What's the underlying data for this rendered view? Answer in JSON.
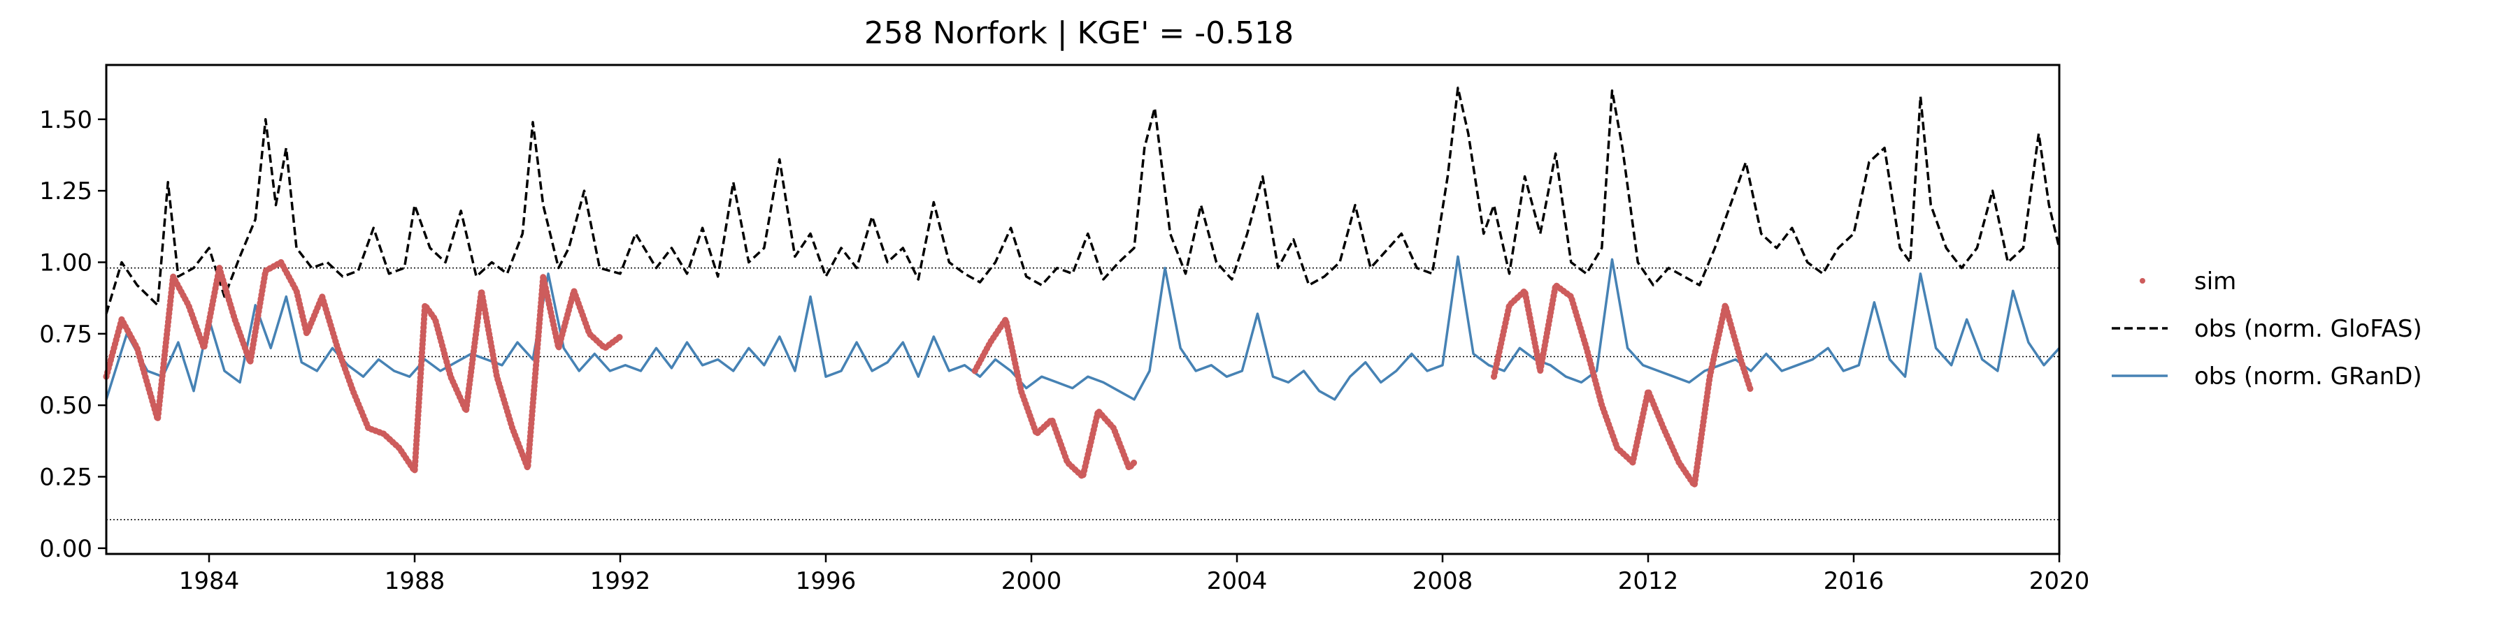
{
  "chart_data": {
    "type": "line",
    "title": "258  Norfork | KGE' = -0.518",
    "xlabel": "",
    "ylabel": "",
    "xlim": [
      1982.0,
      2020.0
    ],
    "ylim": [
      -0.02,
      1.69
    ],
    "x_ticks": [
      1984,
      1988,
      1992,
      1996,
      2000,
      2004,
      2008,
      2012,
      2016,
      2020
    ],
    "x_tick_labels": [
      "1984",
      "1988",
      "1992",
      "1996",
      "2000",
      "2004",
      "2008",
      "2012",
      "2016",
      "2020"
    ],
    "y_ticks": [
      0.0,
      0.25,
      0.5,
      0.75,
      1.0,
      1.25,
      1.5
    ],
    "y_tick_labels": [
      "0.00",
      "0.25",
      "0.50",
      "0.75",
      "1.00",
      "1.25",
      "1.50"
    ],
    "grid": false,
    "reference_lines": [
      0.98,
      0.67,
      0.1
    ],
    "legend": {
      "placement": "right-outside",
      "entries": [
        "sim",
        "obs (norm. GloFAS)",
        "obs (norm. GRanD)"
      ]
    },
    "colors": {
      "sim": "#cd5c5c",
      "glofas": "#000000",
      "grand": "#4682b4"
    },
    "series": [
      {
        "name": "obs (norm. GloFAS)",
        "style": "dashed",
        "x": [
          1982.0,
          1982.3,
          1982.6,
          1983.0,
          1983.2,
          1983.4,
          1983.7,
          1984.0,
          1984.3,
          1984.6,
          1984.9,
          1985.1,
          1985.3,
          1985.5,
          1985.7,
          1986.0,
          1986.3,
          1986.6,
          1986.9,
          1987.2,
          1987.5,
          1987.8,
          1988.0,
          1988.3,
          1988.6,
          1988.9,
          1989.2,
          1989.5,
          1989.8,
          1990.1,
          1990.3,
          1990.5,
          1990.8,
          1991.0,
          1991.3,
          1991.6,
          1992.0,
          1992.3,
          1992.7,
          1993.0,
          1993.3,
          1993.6,
          1993.9,
          1994.2,
          1994.5,
          1994.8,
          1995.1,
          1995.4,
          1995.7,
          1996.0,
          1996.3,
          1996.6,
          1996.9,
          1997.2,
          1997.5,
          1997.8,
          1998.1,
          1998.4,
          1998.7,
          1999.0,
          1999.3,
          1999.6,
          1999.9,
          2000.2,
          2000.5,
          2000.8,
          2001.1,
          2001.4,
          2001.7,
          2002.0,
          2002.2,
          2002.4,
          2002.7,
          2003.0,
          2003.3,
          2003.6,
          2003.9,
          2004.2,
          2004.5,
          2004.8,
          2005.1,
          2005.4,
          2005.7,
          2006.0,
          2006.3,
          2006.6,
          2006.9,
          2007.2,
          2007.5,
          2007.8,
          2008.1,
          2008.3,
          2008.5,
          2008.8,
          2009.0,
          2009.3,
          2009.6,
          2009.9,
          2010.2,
          2010.5,
          2010.8,
          2011.1,
          2011.3,
          2011.5,
          2011.8,
          2012.1,
          2012.4,
          2012.7,
          2013.0,
          2013.3,
          2013.6,
          2013.9,
          2014.2,
          2014.5,
          2014.8,
          2015.1,
          2015.4,
          2015.7,
          2016.0,
          2016.3,
          2016.6,
          2016.9,
          2017.1,
          2017.3,
          2017.5,
          2017.8,
          2018.1,
          2018.4,
          2018.7,
          2019.0,
          2019.3,
          2019.6,
          2019.8,
          2020.0
        ],
        "y": [
          0.82,
          1.0,
          0.92,
          0.85,
          1.28,
          0.95,
          0.98,
          1.05,
          0.88,
          1.02,
          1.15,
          1.5,
          1.2,
          1.4,
          1.05,
          0.98,
          1.0,
          0.95,
          0.97,
          1.12,
          0.96,
          0.98,
          1.2,
          1.05,
          1.0,
          1.18,
          0.95,
          1.0,
          0.96,
          1.1,
          1.49,
          1.2,
          0.98,
          1.05,
          1.25,
          0.98,
          0.96,
          1.1,
          0.98,
          1.05,
          0.96,
          1.12,
          0.95,
          1.28,
          1.0,
          1.05,
          1.36,
          1.02,
          1.1,
          0.95,
          1.05,
          0.98,
          1.16,
          1.0,
          1.05,
          0.94,
          1.21,
          1.0,
          0.96,
          0.93,
          1.0,
          1.12,
          0.95,
          0.92,
          0.98,
          0.96,
          1.1,
          0.94,
          1.0,
          1.05,
          1.4,
          1.54,
          1.1,
          0.96,
          1.2,
          1.0,
          0.94,
          1.1,
          1.3,
          0.98,
          1.08,
          0.92,
          0.95,
          1.0,
          1.2,
          0.98,
          1.04,
          1.1,
          0.98,
          0.96,
          1.3,
          1.61,
          1.45,
          1.1,
          1.2,
          0.96,
          1.3,
          1.1,
          1.38,
          1.0,
          0.96,
          1.05,
          1.6,
          1.4,
          1.0,
          0.92,
          0.98,
          0.95,
          0.92,
          1.05,
          1.2,
          1.35,
          1.1,
          1.05,
          1.12,
          1.0,
          0.96,
          1.05,
          1.1,
          1.35,
          1.4,
          1.05,
          1.0,
          1.58,
          1.2,
          1.05,
          0.98,
          1.05,
          1.25,
          1.0,
          1.05,
          1.45,
          1.2,
          1.05
        ]
      },
      {
        "name": "obs (norm. GRanD)",
        "style": "solid",
        "x": [
          1982.0,
          1982.4,
          1982.8,
          1983.1,
          1983.4,
          1983.7,
          1984.0,
          1984.3,
          1984.6,
          1984.9,
          1985.2,
          1985.5,
          1985.8,
          1986.1,
          1986.4,
          1986.7,
          1987.0,
          1987.3,
          1987.6,
          1987.9,
          1988.2,
          1988.5,
          1988.8,
          1989.1,
          1989.4,
          1989.7,
          1990.0,
          1990.3,
          1990.6,
          1990.9,
          1991.2,
          1991.5,
          1991.8,
          1992.1,
          1992.4,
          1992.7,
          1993.0,
          1993.3,
          1993.6,
          1993.9,
          1994.2,
          1994.5,
          1994.8,
          1995.1,
          1995.4,
          1995.7,
          1996.0,
          1996.3,
          1996.6,
          1996.9,
          1997.2,
          1997.5,
          1997.8,
          1998.1,
          1998.4,
          1998.7,
          1999.0,
          1999.3,
          1999.6,
          1999.9,
          2000.2,
          2000.5,
          2000.8,
          2001.1,
          2001.4,
          2001.7,
          2002.0,
          2002.3,
          2002.6,
          2002.9,
          2003.2,
          2003.5,
          2003.8,
          2004.1,
          2004.4,
          2004.7,
          2005.0,
          2005.3,
          2005.6,
          2005.9,
          2006.2,
          2006.5,
          2006.8,
          2007.1,
          2007.4,
          2007.7,
          2008.0,
          2008.3,
          2008.6,
          2008.9,
          2009.2,
          2009.5,
          2009.8,
          2010.1,
          2010.4,
          2010.7,
          2011.0,
          2011.3,
          2011.6,
          2011.9,
          2012.2,
          2012.5,
          2012.8,
          2013.1,
          2013.4,
          2013.7,
          2014.0,
          2014.3,
          2014.6,
          2014.9,
          2015.2,
          2015.5,
          2015.8,
          2016.1,
          2016.4,
          2016.7,
          2017.0,
          2017.3,
          2017.6,
          2017.9,
          2018.2,
          2018.5,
          2018.8,
          2019.1,
          2019.4,
          2019.7,
          2020.0
        ],
        "y": [
          0.52,
          0.75,
          0.62,
          0.6,
          0.72,
          0.55,
          0.8,
          0.62,
          0.58,
          0.85,
          0.7,
          0.88,
          0.65,
          0.62,
          0.7,
          0.64,
          0.6,
          0.66,
          0.62,
          0.6,
          0.66,
          0.62,
          0.65,
          0.68,
          0.66,
          0.64,
          0.72,
          0.66,
          0.96,
          0.7,
          0.62,
          0.68,
          0.62,
          0.64,
          0.62,
          0.7,
          0.63,
          0.72,
          0.64,
          0.66,
          0.62,
          0.7,
          0.64,
          0.74,
          0.62,
          0.88,
          0.6,
          0.62,
          0.72,
          0.62,
          0.65,
          0.72,
          0.6,
          0.74,
          0.62,
          0.64,
          0.6,
          0.66,
          0.62,
          0.56,
          0.6,
          0.58,
          0.56,
          0.6,
          0.58,
          0.55,
          0.52,
          0.62,
          0.98,
          0.7,
          0.62,
          0.64,
          0.6,
          0.62,
          0.82,
          0.6,
          0.58,
          0.62,
          0.55,
          0.52,
          0.6,
          0.65,
          0.58,
          0.62,
          0.68,
          0.62,
          0.64,
          1.02,
          0.68,
          0.64,
          0.62,
          0.7,
          0.66,
          0.64,
          0.6,
          0.58,
          0.62,
          1.01,
          0.7,
          0.64,
          0.62,
          0.6,
          0.58,
          0.62,
          0.64,
          0.66,
          0.62,
          0.68,
          0.62,
          0.64,
          0.66,
          0.7,
          0.62,
          0.64,
          0.86,
          0.66,
          0.6,
          0.96,
          0.7,
          0.64,
          0.8,
          0.66,
          0.62,
          0.9,
          0.72,
          0.64,
          0.7
        ]
      },
      {
        "name": "sim",
        "style": "dots",
        "segments": [
          {
            "x": [
              1982.0,
              1982.3,
              1982.6,
              1983.0,
              1983.3,
              1983.6,
              1983.9,
              1984.2,
              1984.5,
              1984.8,
              1985.1,
              1985.4,
              1985.7,
              1985.9,
              1986.2,
              1986.5,
              1986.8,
              1987.1,
              1987.4,
              1987.7,
              1988.0,
              1988.2,
              1988.4,
              1988.7,
              1989.0,
              1989.3,
              1989.6,
              1989.9,
              1990.2,
              1990.5,
              1990.8,
              1991.1,
              1991.4,
              1991.7,
              1992.0
            ],
            "y": [
              0.6,
              0.8,
              0.7,
              0.45,
              0.95,
              0.85,
              0.7,
              0.98,
              0.8,
              0.65,
              0.97,
              1.0,
              0.9,
              0.75,
              0.88,
              0.7,
              0.55,
              0.42,
              0.4,
              0.35,
              0.27,
              0.85,
              0.8,
              0.6,
              0.48,
              0.9,
              0.6,
              0.42,
              0.28,
              0.95,
              0.7,
              0.9,
              0.75,
              0.7,
              0.74
            ]
          },
          {
            "x": [
              1998.9,
              1999.2,
              1999.5,
              1999.8,
              2000.1,
              2000.4,
              2000.7,
              2001.0,
              2001.3,
              2001.6,
              2001.9,
              2002.0
            ],
            "y": [
              0.62,
              0.72,
              0.8,
              0.55,
              0.4,
              0.45,
              0.3,
              0.25,
              0.48,
              0.42,
              0.28,
              0.3
            ]
          },
          {
            "x": [
              2009.0,
              2009.3,
              2009.6,
              2009.9,
              2010.2,
              2010.5,
              2010.8,
              2011.1,
              2011.4,
              2011.7,
              2012.0,
              2012.3,
              2012.6,
              2012.9,
              2013.2,
              2013.5,
              2013.8,
              2014.0
            ],
            "y": [
              0.6,
              0.85,
              0.9,
              0.62,
              0.92,
              0.88,
              0.7,
              0.5,
              0.35,
              0.3,
              0.55,
              0.42,
              0.3,
              0.22,
              0.6,
              0.85,
              0.66,
              0.55
            ]
          }
        ]
      }
    ]
  }
}
